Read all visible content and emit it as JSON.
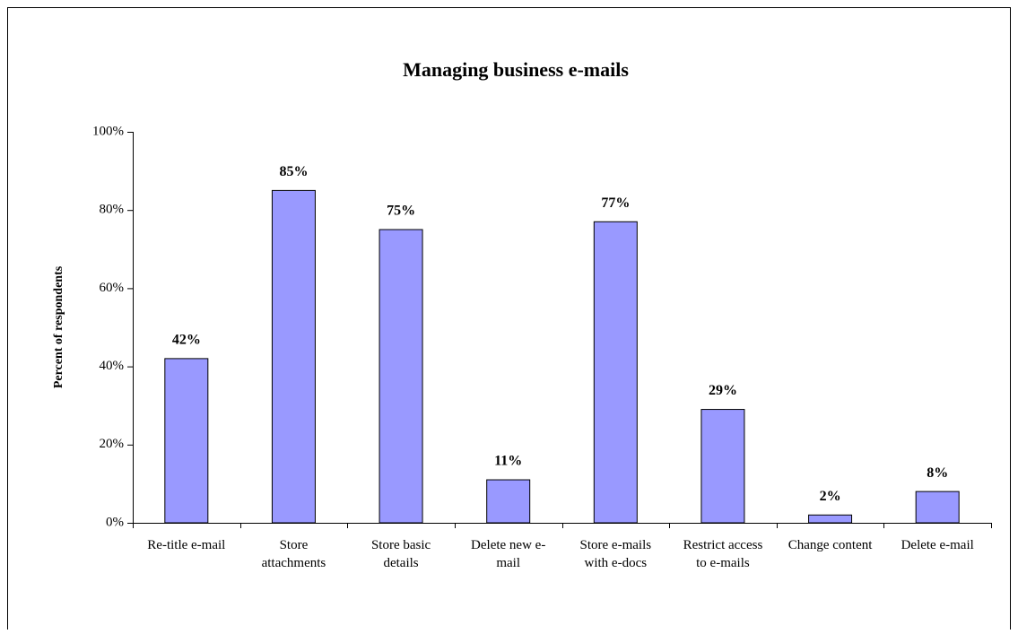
{
  "chart_data": {
    "type": "bar",
    "title": "Managing business e-mails",
    "y_label": "Percent of respondents",
    "categories": [
      "Re-title e-mail",
      "Store attachments",
      "Store basic details",
      "Delete new e-mail",
      "Store e-mails with e-docs",
      "Restrict access to e-mails",
      "Change content",
      "Delete e-mail"
    ],
    "values": [
      42,
      85,
      75,
      11,
      77,
      29,
      2,
      8
    ],
    "value_labels": [
      "42%",
      "85%",
      "75%",
      "11%",
      "77%",
      "29%",
      "2%",
      "8%"
    ],
    "color": "#9999ff",
    "ylim": [
      0,
      100
    ],
    "yticks": [
      {
        "value": 0,
        "label": "0%"
      },
      {
        "value": 20,
        "label": "20%"
      },
      {
        "value": 40,
        "label": "40%"
      },
      {
        "value": 60,
        "label": "60%"
      },
      {
        "value": 80,
        "label": "80%"
      },
      {
        "value": 100,
        "label": "100%"
      }
    ],
    "grid": false
  }
}
